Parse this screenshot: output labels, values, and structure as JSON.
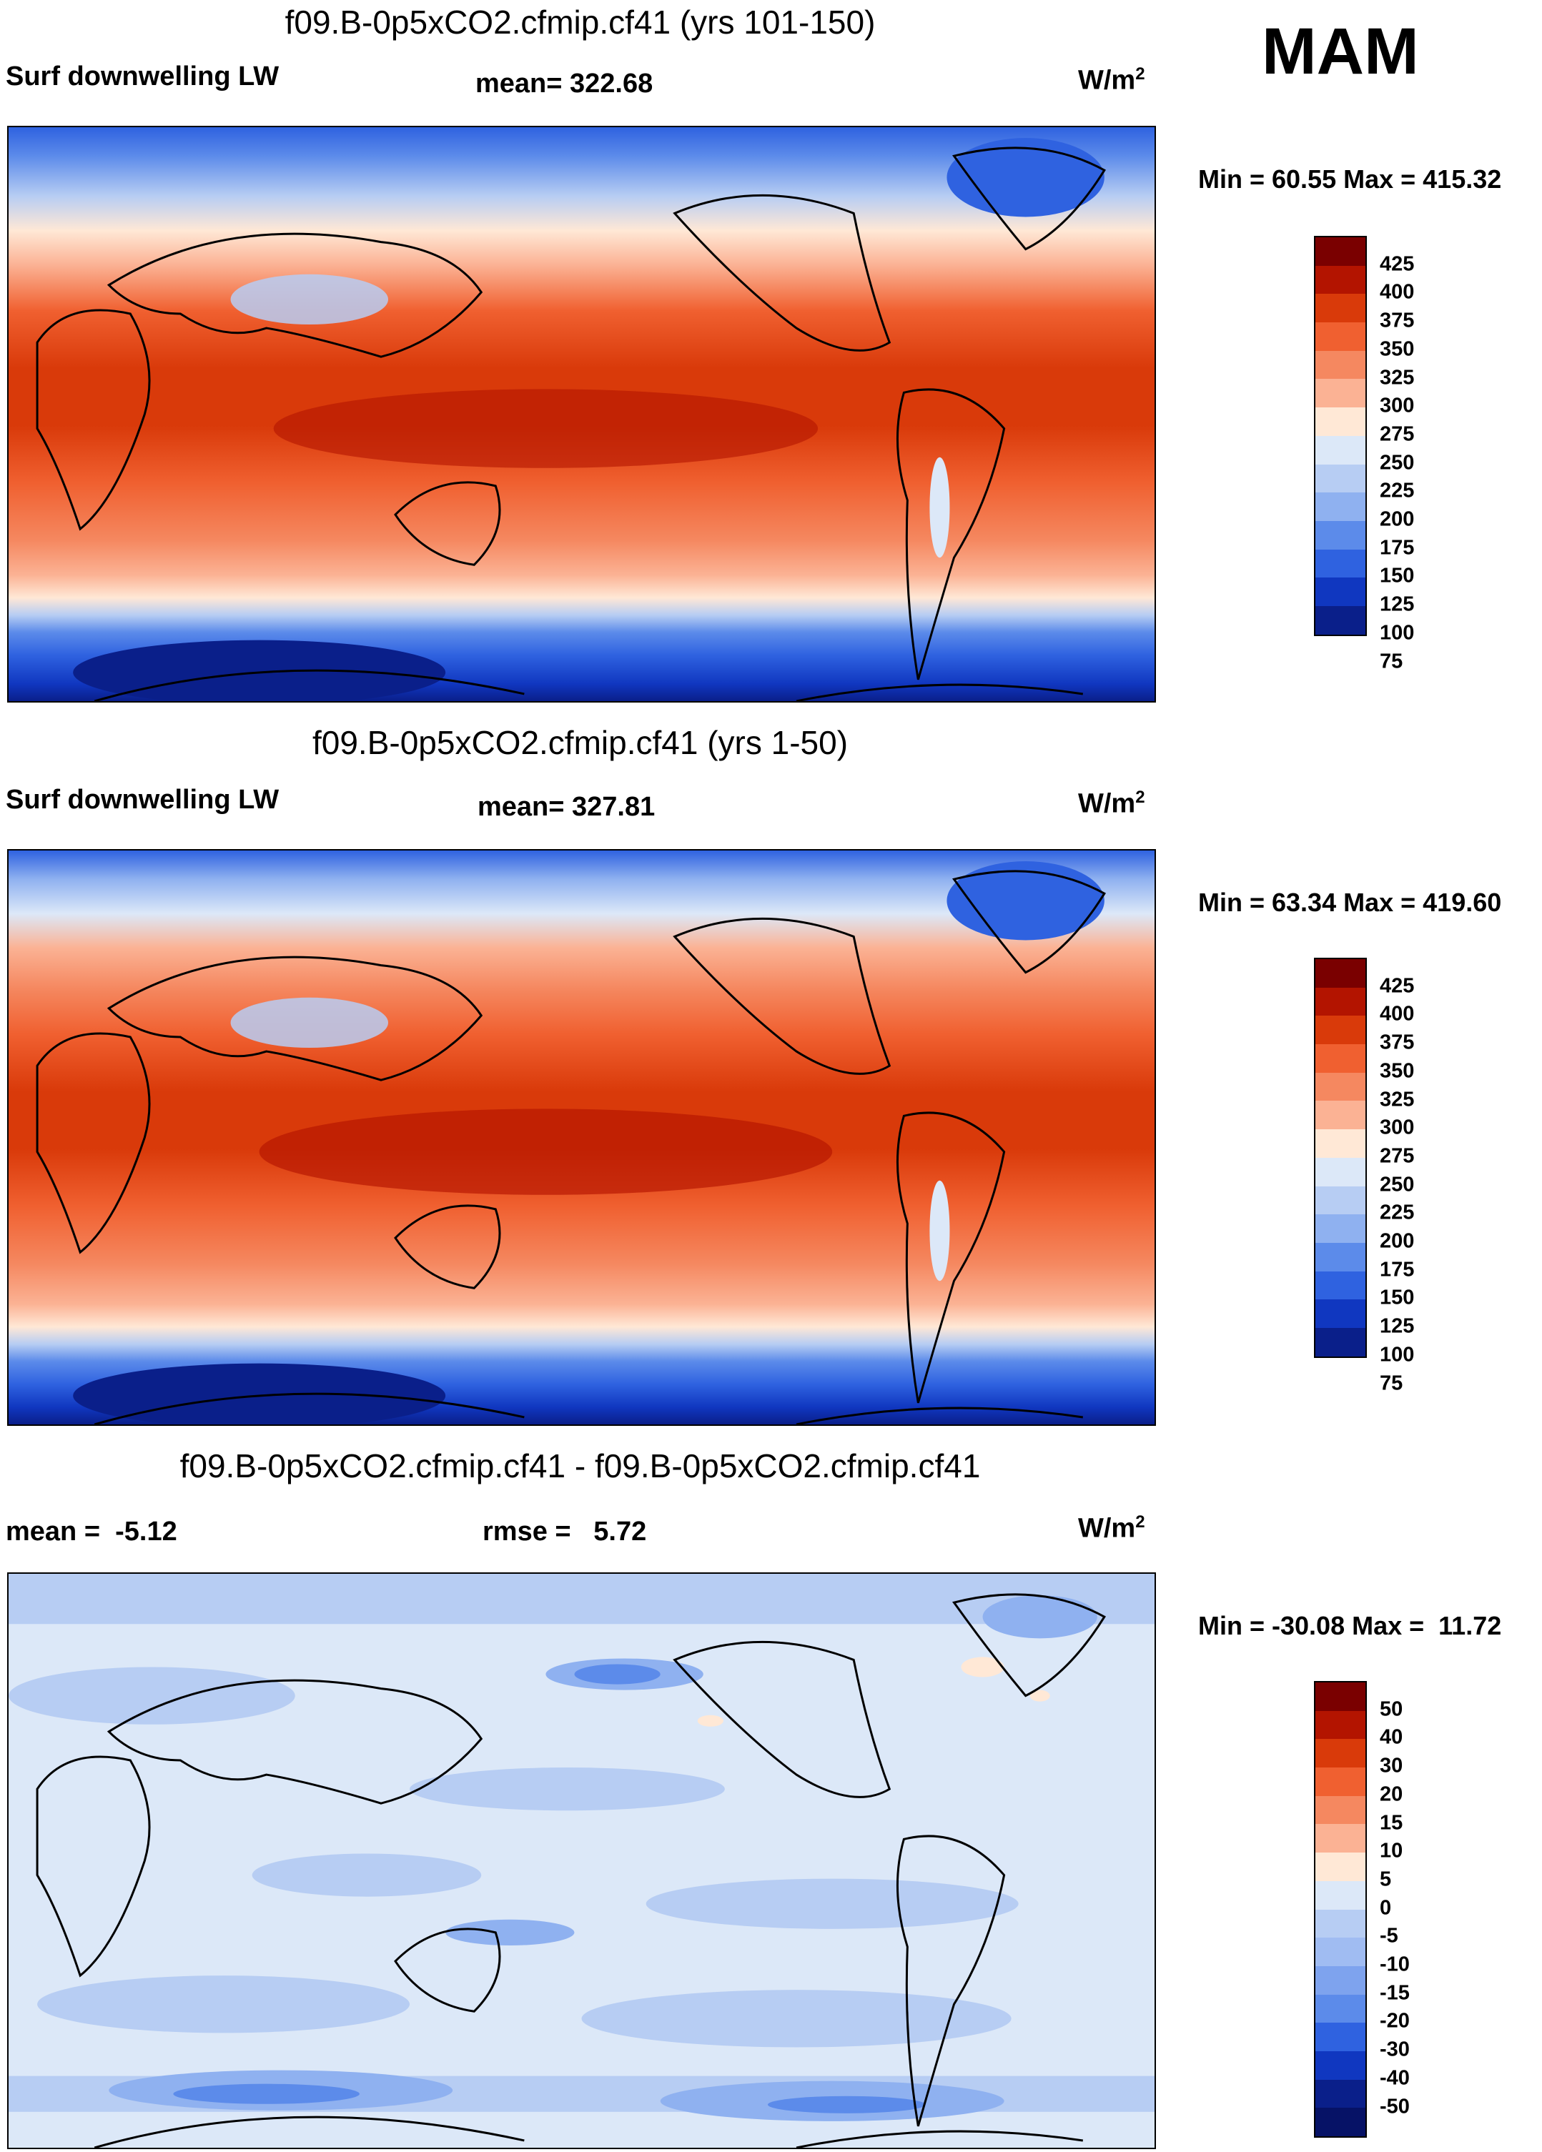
{
  "season": "MAM",
  "units": {
    "base": "W/m",
    "sup": "2"
  },
  "panels": [
    {
      "title": "f09.B-0p5xCO2.cfmip.cf41 (yrs 101-150)",
      "left_label": "Surf downwelling LW",
      "center_label": "mean= 322.68",
      "min_max": "Min =  60.55 Max = 415.32",
      "colorbar": {
        "colors": [
          "#7a0000",
          "#b31400",
          "#d93a0a",
          "#f06030",
          "#f58860",
          "#fbb294",
          "#ffe8d6",
          "#dce8f8",
          "#b7cdf3",
          "#8fb1f0",
          "#5c8bea",
          "#2f62e0",
          "#1037c0",
          "#0a1f8a"
        ],
        "ticks": [
          "425",
          "400",
          "375",
          "350",
          "325",
          "300",
          "275",
          "250",
          "225",
          "200",
          "175",
          "150",
          "125",
          "100",
          "75"
        ]
      }
    },
    {
      "title": "f09.B-0p5xCO2.cfmip.cf41 (yrs 1-50)",
      "left_label": "Surf downwelling LW",
      "center_label": "mean= 327.81",
      "min_max": "Min =  63.34 Max = 419.60",
      "colorbar": {
        "colors": [
          "#7a0000",
          "#b31400",
          "#d93a0a",
          "#f06030",
          "#f58860",
          "#fbb294",
          "#ffe8d6",
          "#dce8f8",
          "#b7cdf3",
          "#8fb1f0",
          "#5c8bea",
          "#2f62e0",
          "#1037c0",
          "#0a1f8a"
        ],
        "ticks": [
          "425",
          "400",
          "375",
          "350",
          "325",
          "300",
          "275",
          "250",
          "225",
          "200",
          "175",
          "150",
          "125",
          "100",
          "75"
        ]
      }
    },
    {
      "title": "f09.B-0p5xCO2.cfmip.cf41 - f09.B-0p5xCO2.cfmip.cf41",
      "left_label": "mean =  -5.12",
      "center_label": "rmse =   5.72",
      "min_max": "Min = -30.08 Max =  11.72",
      "colorbar": {
        "colors": [
          "#7a0000",
          "#b31400",
          "#d93a0a",
          "#f06030",
          "#f58860",
          "#fbb294",
          "#ffe8d6",
          "#dce8f8",
          "#b7cdf3",
          "#a0bcf2",
          "#7ea3ee",
          "#5c8bea",
          "#2f62e0",
          "#1037c0",
          "#0a1f8a",
          "#061266"
        ],
        "ticks": [
          "50",
          "40",
          "30",
          "20",
          "15",
          "10",
          "5",
          "0",
          "-5",
          "-10",
          "-15",
          "-20",
          "-30",
          "-40",
          "-50"
        ]
      }
    }
  ]
}
